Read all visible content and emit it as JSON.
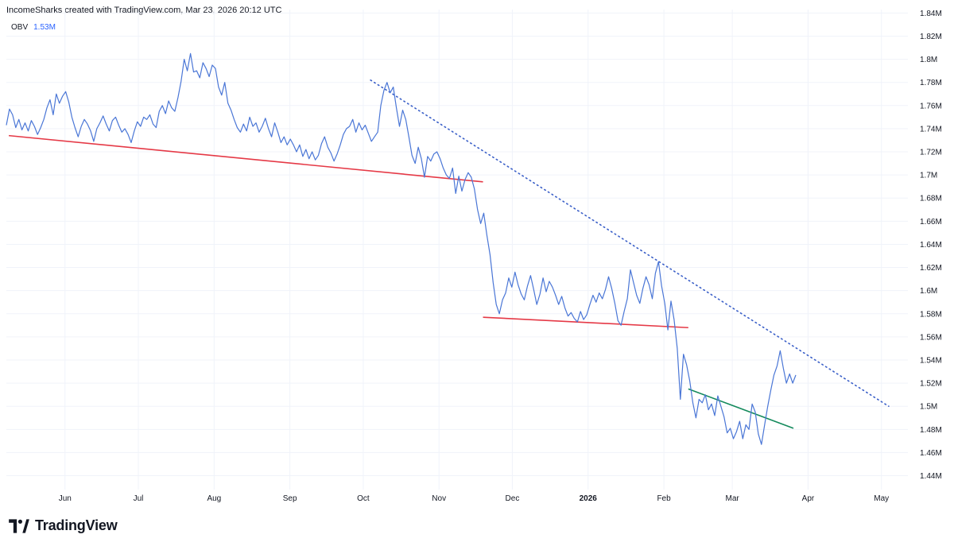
{
  "header": {
    "attribution": "IncomeSharks created with TradingView.com, Mar 23, 2026 20:12 UTC"
  },
  "legend": {
    "indicator": "OBV",
    "value": "1.53M"
  },
  "brand": {
    "name": "TradingView"
  },
  "colors": {
    "series": "#4a76d6",
    "support_red": "#e53946",
    "trend_green": "#148a5c",
    "dotted_trend": "#3a5fc8",
    "grid": "#f0f3fa"
  },
  "chart_data": {
    "type": "line",
    "x_axis": {
      "ticks": [
        "Jun",
        "Jul",
        "Aug",
        "Sep",
        "Oct",
        "Nov",
        "Dec",
        "2026",
        "Feb",
        "Mar",
        "Apr",
        "May"
      ],
      "bold_ticks": [
        "2026"
      ],
      "range": [
        "2025-05-08",
        "2026-05-05"
      ]
    },
    "y_axis": {
      "ticks": [
        "1.44M",
        "1.46M",
        "1.48M",
        "1.5M",
        "1.52M",
        "1.54M",
        "1.56M",
        "1.58M",
        "1.6M",
        "1.62M",
        "1.64M",
        "1.66M",
        "1.68M",
        "1.7M",
        "1.72M",
        "1.74M",
        "1.76M",
        "1.78M",
        "1.8M",
        "1.82M",
        "1.84M"
      ],
      "range": [
        1.428,
        1.843
      ],
      "unit": "M"
    },
    "series": [
      {
        "values": [
          1.743,
          1.757,
          1.752,
          1.741,
          1.748,
          1.739,
          1.745,
          1.738,
          1.747,
          1.742,
          1.735,
          1.741,
          1.748,
          1.758,
          1.765,
          1.752,
          1.77,
          1.762,
          1.768,
          1.772,
          1.763,
          1.75,
          1.741,
          1.733,
          1.742,
          1.748,
          1.744,
          1.738,
          1.729,
          1.74,
          1.745,
          1.751,
          1.744,
          1.738,
          1.747,
          1.75,
          1.743,
          1.737,
          1.74,
          1.735,
          1.728,
          1.738,
          1.746,
          1.742,
          1.75,
          1.748,
          1.752,
          1.744,
          1.741,
          1.755,
          1.76,
          1.753,
          1.764,
          1.758,
          1.755,
          1.767,
          1.781,
          1.8,
          1.79,
          1.805,
          1.789,
          1.79,
          1.784,
          1.797,
          1.792,
          1.785,
          1.795,
          1.792,
          1.776,
          1.769,
          1.78,
          1.762,
          1.756,
          1.748,
          1.741,
          1.737,
          1.744,
          1.738,
          1.75,
          1.742,
          1.745,
          1.737,
          1.742,
          1.749,
          1.74,
          1.733,
          1.745,
          1.737,
          1.728,
          1.733,
          1.726,
          1.731,
          1.726,
          1.72,
          1.726,
          1.716,
          1.722,
          1.714,
          1.72,
          1.713,
          1.717,
          1.727,
          1.733,
          1.724,
          1.719,
          1.712,
          1.718,
          1.726,
          1.735,
          1.74,
          1.742,
          1.748,
          1.737,
          1.745,
          1.739,
          1.743,
          1.736,
          1.729,
          1.733,
          1.737,
          1.76,
          1.773,
          1.78,
          1.771,
          1.776,
          1.758,
          1.742,
          1.756,
          1.748,
          1.733,
          1.717,
          1.71,
          1.724,
          1.714,
          1.698,
          1.716,
          1.712,
          1.718,
          1.72,
          1.714,
          1.706,
          1.7,
          1.697,
          1.706,
          1.684,
          1.699,
          1.686,
          1.696,
          1.702,
          1.698,
          1.688,
          1.67,
          1.658,
          1.667,
          1.648,
          1.631,
          1.607,
          1.588,
          1.58,
          1.592,
          1.598,
          1.611,
          1.603,
          1.616,
          1.605,
          1.597,
          1.592,
          1.604,
          1.613,
          1.601,
          1.588,
          1.597,
          1.611,
          1.599,
          1.608,
          1.603,
          1.596,
          1.588,
          1.595,
          1.585,
          1.578,
          1.581,
          1.576,
          1.573,
          1.582,
          1.575,
          1.579,
          1.588,
          1.596,
          1.59,
          1.598,
          1.593,
          1.601,
          1.612,
          1.602,
          1.589,
          1.574,
          1.57,
          1.582,
          1.593,
          1.618,
          1.607,
          1.596,
          1.589,
          1.602,
          1.612,
          1.605,
          1.593,
          1.615,
          1.625,
          1.604,
          1.589,
          1.566,
          1.591,
          1.575,
          1.55,
          1.506,
          1.545,
          1.536,
          1.522,
          1.503,
          1.49,
          1.506,
          1.503,
          1.51,
          1.497,
          1.502,
          1.492,
          1.509,
          1.5,
          1.491,
          1.477,
          1.481,
          1.472,
          1.478,
          1.487,
          1.472,
          1.484,
          1.48,
          1.502,
          1.495,
          1.476,
          1.467,
          1.484,
          1.5,
          1.514,
          1.527,
          1.535,
          1.548,
          1.533,
          1.52,
          1.528,
          1.52,
          1.527
        ]
      }
    ],
    "overlays": [
      {
        "kind": "trendline",
        "style": "solid",
        "color": "#e53946",
        "from": [
          "2025-05-09",
          1.734
        ],
        "to": [
          "2025-11-19",
          1.694
        ]
      },
      {
        "kind": "trendline",
        "style": "solid",
        "color": "#e53946",
        "from": [
          "2025-11-19",
          1.577
        ],
        "to": [
          "2026-02-11",
          1.568
        ]
      },
      {
        "kind": "trendline",
        "style": "solid",
        "color": "#148a5c",
        "from": [
          "2026-02-11",
          1.515
        ],
        "to": [
          "2026-03-26",
          1.481
        ]
      },
      {
        "kind": "trendline",
        "style": "dotted",
        "color": "#3a5fc8",
        "from": [
          "2025-10-04",
          1.782
        ],
        "to": [
          "2026-05-04",
          1.5
        ]
      }
    ],
    "grid": true,
    "legend": "top-left"
  }
}
